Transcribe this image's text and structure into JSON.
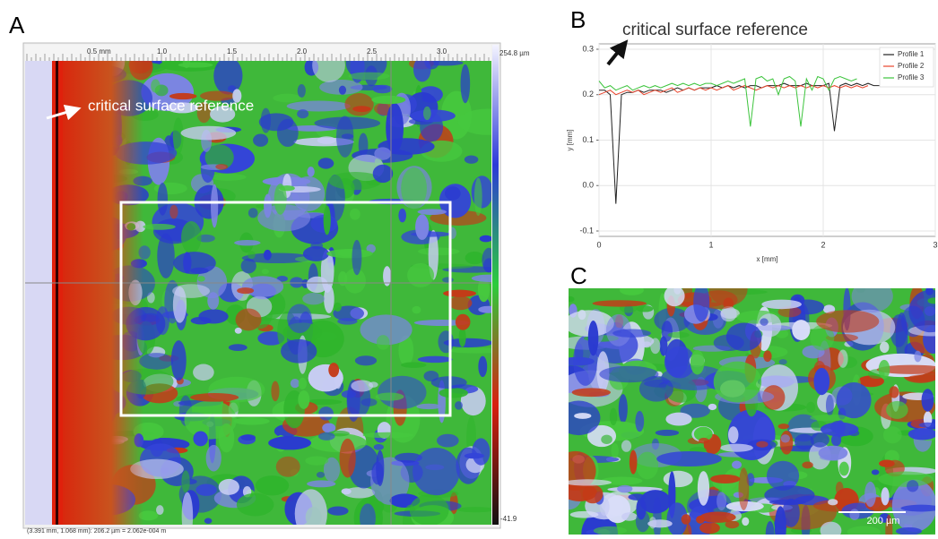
{
  "panel_a": {
    "label": "A",
    "annotation": "critical surface reference",
    "ruler_ticks": [
      "0.5 mm",
      "1.0",
      "1.5",
      "2.0",
      "2.5",
      "3.0"
    ],
    "colorbar_max": "254.8 µm",
    "colorbar_min": "-41.9",
    "status": "(3.391 mm, 1.068 mm): 206.2 µm = 2.062e-004 m"
  },
  "chart_data": {
    "type": "line",
    "label": "B",
    "annotation": "critical surface reference",
    "x_label": "x [mm]",
    "y_label": "y [mm]",
    "xlim": [
      0,
      3
    ],
    "ylim": [
      -0.1,
      0.3
    ],
    "xticks": [
      0,
      1,
      2,
      3
    ],
    "yticks": [
      -0.1,
      {
        "value": 0,
        "label": "0.0"
      },
      0.1,
      0.2,
      0.3
    ],
    "grid": true,
    "legend": "upper right",
    "x": [
      0,
      0.05,
      0.1,
      0.15,
      0.2,
      0.25,
      0.3,
      0.35,
      0.4,
      0.45,
      0.5,
      0.55,
      0.6,
      0.65,
      0.7,
      0.75,
      0.8,
      0.85,
      0.9,
      0.95,
      1,
      1.05,
      1.1,
      1.15,
      1.2,
      1.25,
      1.3,
      1.35,
      1.4,
      1.45,
      1.5,
      1.55,
      1.6,
      1.65,
      1.7,
      1.75,
      1.8,
      1.85,
      1.9,
      1.95,
      2,
      2.05,
      2.1,
      2.15,
      2.2,
      2.25,
      2.3,
      2.35,
      2.4,
      2.45,
      2.5
    ],
    "series": [
      {
        "name": "Profile 1",
        "color": "#222222",
        "values": [
          0.21,
          0.21,
          0.2,
          -0.04,
          0.2,
          0.205,
          0.205,
          0.21,
          0.205,
          0.21,
          0.21,
          0.21,
          0.205,
          0.21,
          0.215,
          0.21,
          0.215,
          0.21,
          0.215,
          0.215,
          0.215,
          0.22,
          0.215,
          0.22,
          0.215,
          0.22,
          0.215,
          0.22,
          0.22,
          0.215,
          0.22,
          0.22,
          0.22,
          0.225,
          0.22,
          0.22,
          0.22,
          0.225,
          0.22,
          0.22,
          0.22,
          0.225,
          0.12,
          0.22,
          0.225,
          0.22,
          0.225,
          0.22,
          0.225,
          0.22,
          0.22
        ]
      },
      {
        "name": "Profile 2",
        "color": "#e8442c",
        "values": [
          0.2,
          0.205,
          0.21,
          0.2,
          0.205,
          0.21,
          0.205,
          0.21,
          0.2,
          0.205,
          0.21,
          0.205,
          0.21,
          0.215,
          0.205,
          0.21,
          0.215,
          0.21,
          0.215,
          0.21,
          0.215,
          0.21,
          0.215,
          0.22,
          0.21,
          0.215,
          0.22,
          0.215,
          0.21,
          0.215,
          0.22,
          0.215,
          0.22,
          0.215,
          0.22,
          0.215,
          0.22,
          0.215,
          0.22,
          0.215,
          0.22,
          0.215,
          0.22,
          0.215,
          0.22,
          0.215,
          0.22,
          0.215,
          0.22,
          null,
          null
        ]
      },
      {
        "name": "Profile 3",
        "color": "#3cc43c",
        "values": [
          0.23,
          0.215,
          0.22,
          0.21,
          0.215,
          0.22,
          0.21,
          0.215,
          0.22,
          0.215,
          0.22,
          0.215,
          0.22,
          0.225,
          0.22,
          0.225,
          0.22,
          0.225,
          0.22,
          0.225,
          0.225,
          0.22,
          0.225,
          0.23,
          0.225,
          0.23,
          0.235,
          0.13,
          0.235,
          0.24,
          0.23,
          0.235,
          0.2,
          0.235,
          0.24,
          0.23,
          0.13,
          0.235,
          0.21,
          0.24,
          0.235,
          0.21,
          0.235,
          0.24,
          0.235,
          0.23,
          0.235,
          null,
          null,
          null,
          null
        ]
      }
    ]
  },
  "panel_c": {
    "label": "C",
    "scale_bar": "200 µm"
  }
}
